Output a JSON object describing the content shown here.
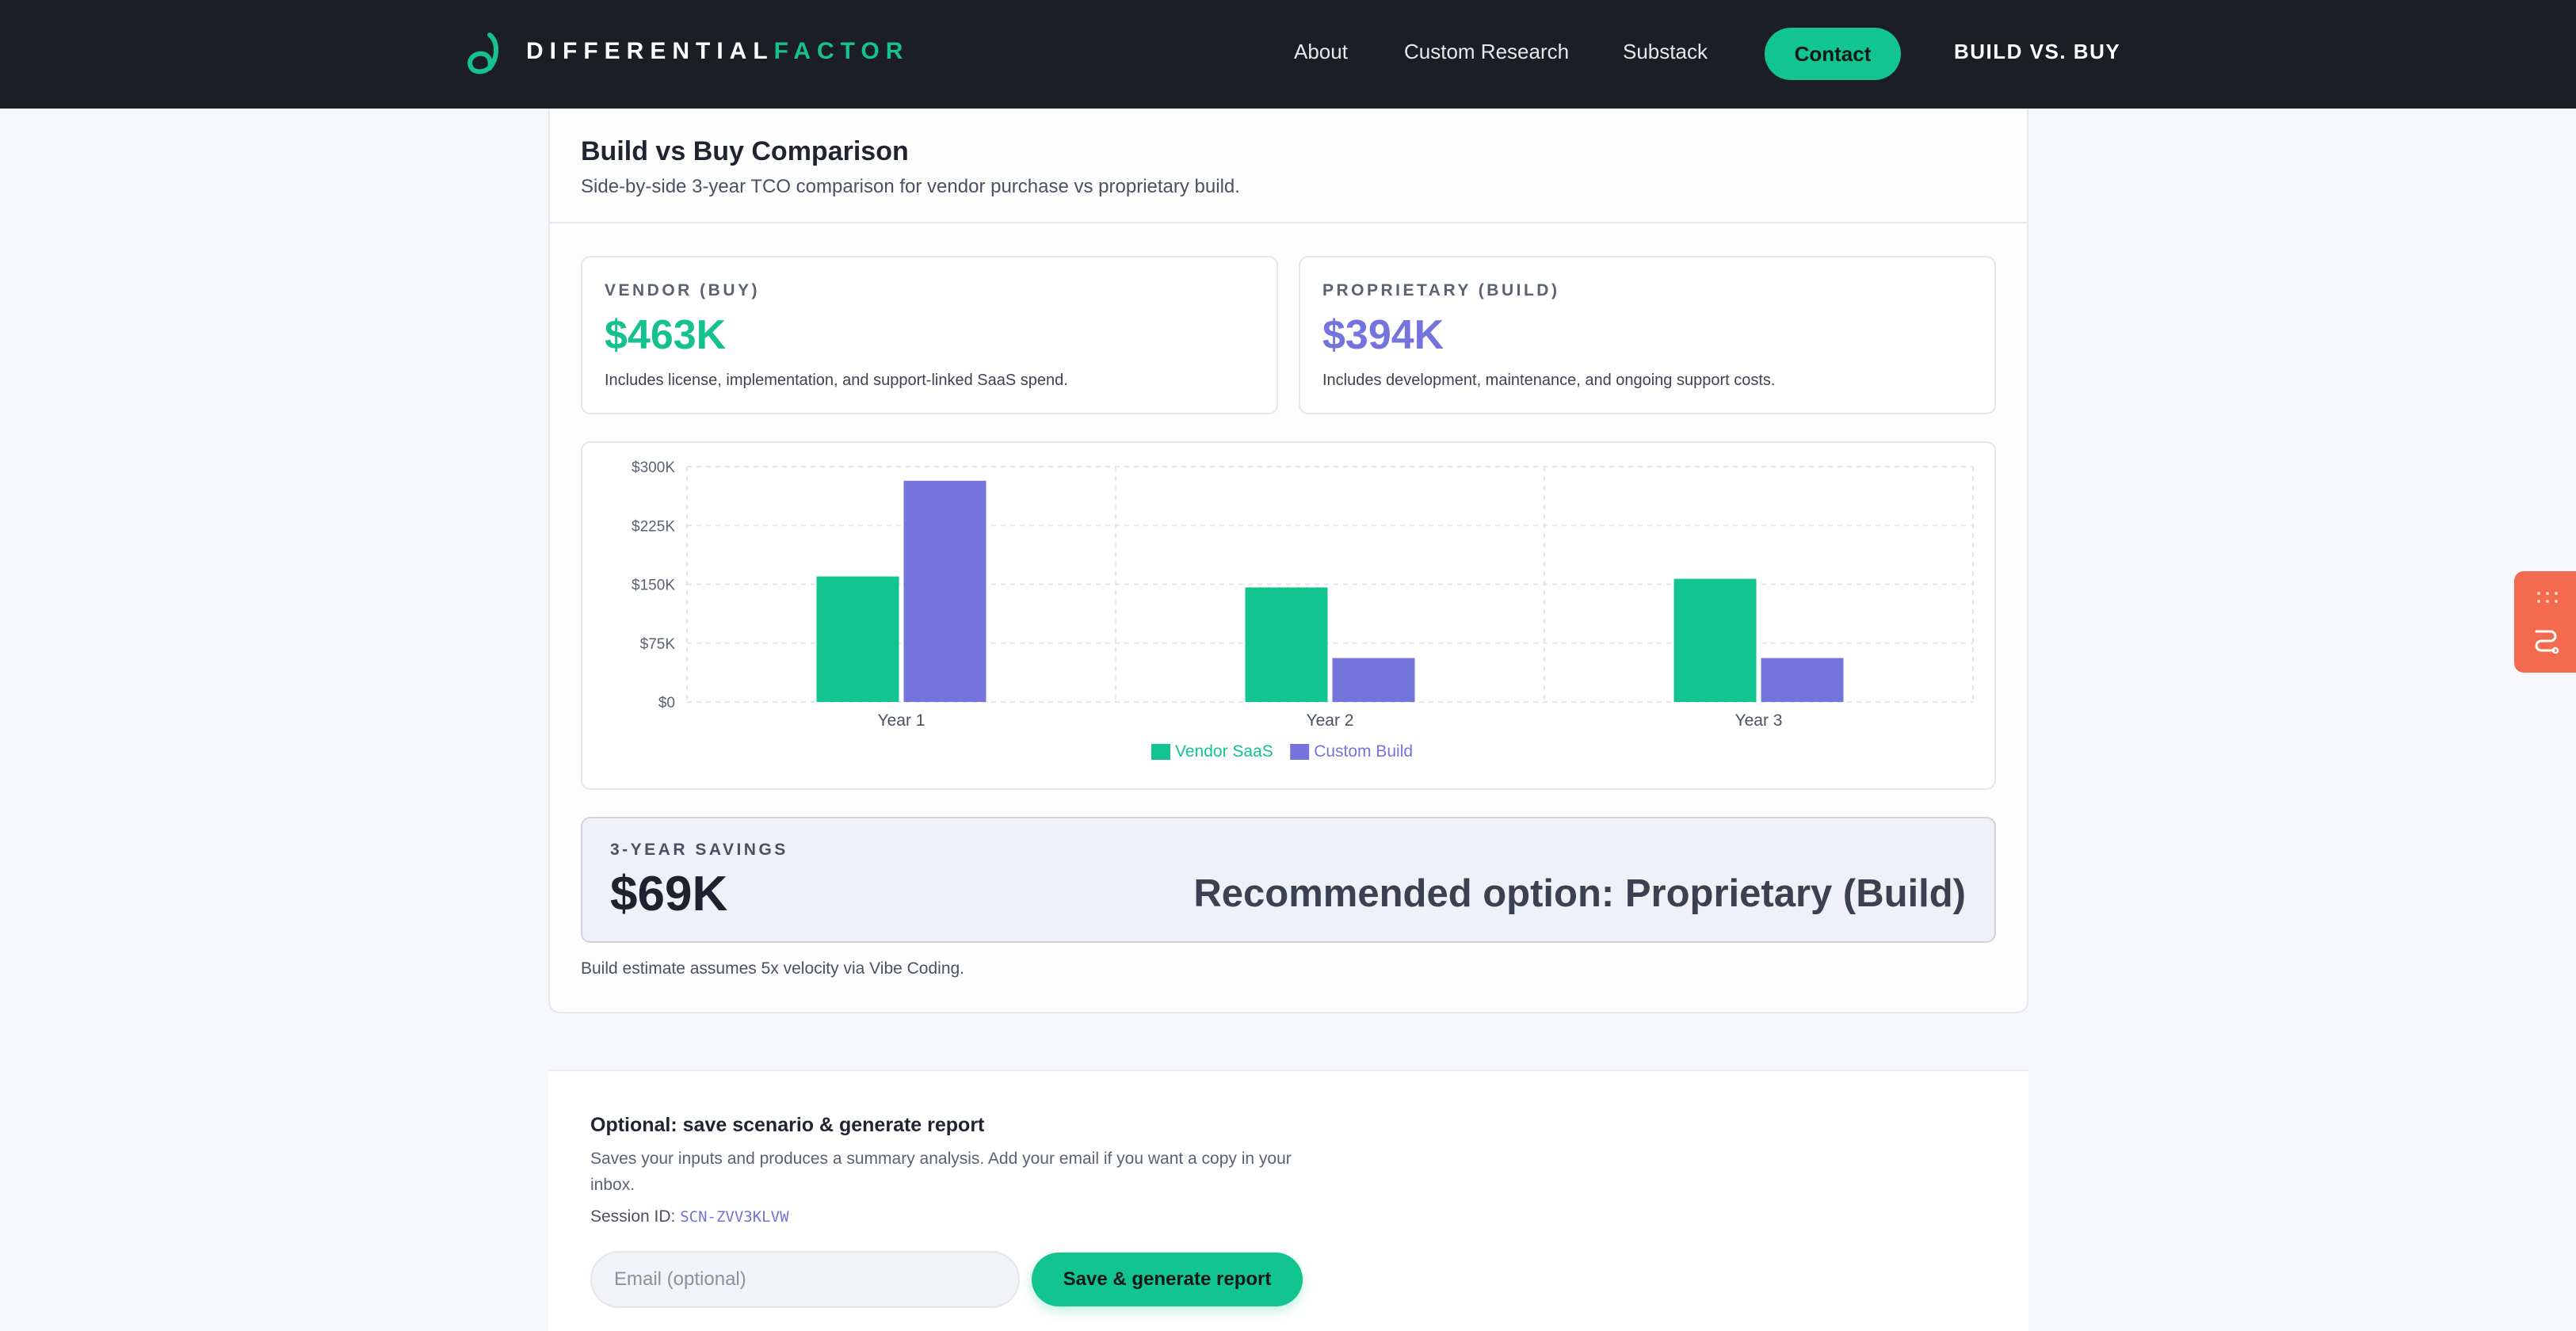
{
  "header": {
    "logo_part1": "DIFFERENTIAL",
    "logo_part2": "FACTOR",
    "nav": [
      "About",
      "Custom Research",
      "Substack"
    ],
    "contact": "Contact",
    "build_vs_buy": "BUILD VS. BUY"
  },
  "comparison": {
    "title": "Build vs Buy Comparison",
    "subtitle": "Side-by-side 3-year TCO comparison for vendor purchase vs proprietary build.",
    "vendor": {
      "label": "VENDOR (BUY)",
      "value": "$463K",
      "description": "Includes license, implementation, and support-linked SaaS spend."
    },
    "proprietary": {
      "label": "PROPRIETARY (BUILD)",
      "value": "$394K",
      "description": "Includes development, maintenance, and ongoing support costs."
    },
    "savings": {
      "label": "3-YEAR SAVINGS",
      "value": "$69K",
      "recommendation": "Recommended option: Proprietary (Build)"
    },
    "footnote": "Build estimate assumes 5x velocity via Vibe Coding."
  },
  "colors": {
    "vendor": "#12c48f",
    "build": "#7474dc",
    "widget": "#f46a4f"
  },
  "chart_data": {
    "type": "bar",
    "categories": [
      "Year 1",
      "Year 2",
      "Year 3"
    ],
    "series": [
      {
        "name": "Vendor SaaS",
        "values": [
          160,
          146,
          157
        ]
      },
      {
        "name": "Custom Build",
        "values": [
          282,
          56,
          56
        ]
      }
    ],
    "y_ticks": [
      "$0",
      "$75K",
      "$150K",
      "$225K",
      "$300K"
    ],
    "ylim": [
      0,
      300
    ],
    "grid": true,
    "legend": "bottom-center"
  },
  "save": {
    "title": "Optional: save scenario & generate report",
    "description": "Saves your inputs and produces a summary analysis. Add your email if you want a copy in your inbox.",
    "session_label": "Session ID:",
    "session_id": "SCN-ZVV3KLVW",
    "email_placeholder": "Email (optional)",
    "button": "Save & generate report"
  },
  "icons": {
    "logo": "logo-mark-icon",
    "widget_top": "dots-grid-icon",
    "widget_bottom": "route-icon"
  }
}
